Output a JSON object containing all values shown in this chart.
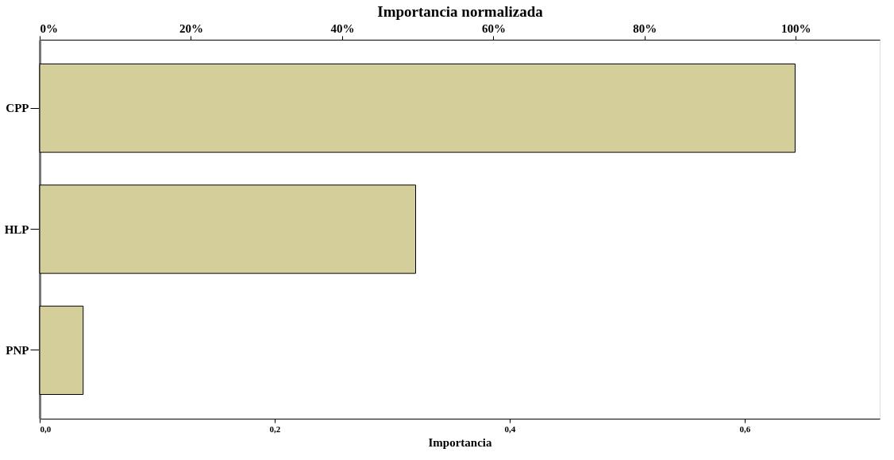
{
  "chart_data": {
    "type": "bar",
    "orientation": "horizontal",
    "x2label": "Importancia normalizada",
    "xlabel": "Importancia",
    "categories": [
      "CPP",
      "HLP",
      "PNP"
    ],
    "values": [
      0.643,
      0.32,
      0.037
    ],
    "color": "#d4ce9a",
    "xlim": [
      0,
      0.715
    ],
    "xticks": [
      {
        "value": 0,
        "label": "0,0"
      },
      {
        "value": 0.2,
        "label": "0,2"
      },
      {
        "value": 0.4,
        "label": "0,4"
      },
      {
        "value": 0.6,
        "label": "0,6"
      }
    ],
    "x2lim": [
      0,
      111.1
    ],
    "x2ticks": [
      {
        "value": 0,
        "label": "0%"
      },
      {
        "value": 20,
        "label": "20%"
      },
      {
        "value": 40,
        "label": "40%"
      },
      {
        "value": 60,
        "label": "60%"
      },
      {
        "value": 80,
        "label": "80%"
      },
      {
        "value": 100,
        "label": "100%"
      }
    ],
    "grid": false
  }
}
